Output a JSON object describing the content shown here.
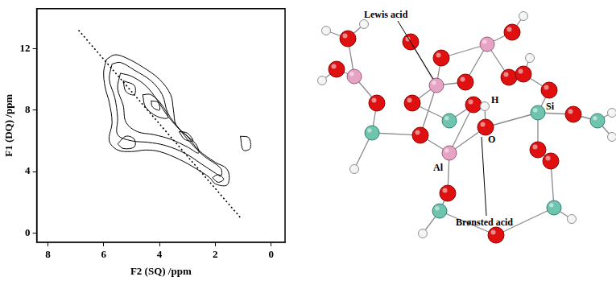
{
  "chart_data": {
    "type": "contour",
    "x_label": "F2 (SQ) /ppm",
    "y_label": "F1 (DQ) /ppm",
    "xlim": [
      8.4,
      -0.5
    ],
    "xticks": [
      8,
      6,
      4,
      2,
      0
    ],
    "ylim": [
      -0.6,
      14.6
    ],
    "yticks": [
      0,
      4,
      8,
      12
    ],
    "grid": false,
    "series": [
      {
        "color": "#000000",
        "line_style": "solid",
        "x": [
          5.9,
          6.0,
          5.95,
          5.8,
          5.7,
          5.8,
          5.5,
          5.0,
          4.5,
          4.0,
          3.3,
          2.7,
          2.2,
          2.0,
          1.6,
          1.5,
          1.6,
          2.0,
          2.6,
          3.0,
          3.4,
          3.5,
          3.6,
          4.0,
          4.6,
          5.2,
          5.6,
          5.9
        ],
        "values": [
          11.3,
          10.5,
          9.5,
          8.5,
          7.2,
          6.0,
          5.4,
          5.3,
          5.4,
          5.3,
          4.8,
          4.2,
          3.6,
          3.2,
          3.1,
          3.6,
          4.2,
          4.6,
          5.4,
          6.3,
          7.0,
          8.0,
          9.0,
          10.0,
          10.8,
          11.4,
          11.6,
          11.3
        ]
      },
      {
        "color": "#000000",
        "line_style": "solid",
        "x": [
          5.7,
          5.8,
          5.6,
          5.5,
          5.5,
          5.0,
          4.4,
          3.8,
          3.1,
          2.5,
          2.0,
          1.8,
          1.8,
          2.4,
          2.9,
          3.3,
          3.7,
          3.9,
          4.3,
          4.9,
          5.4,
          5.7
        ],
        "values": [
          11.0,
          10.0,
          8.8,
          7.5,
          6.4,
          6.0,
          5.9,
          5.7,
          5.2,
          4.5,
          3.9,
          3.7,
          4.2,
          5.0,
          5.9,
          6.8,
          7.8,
          9.0,
          9.9,
          10.6,
          11.1,
          11.0
        ]
      },
      {
        "color": "#000000",
        "line_style": "solid",
        "x": [
          5.4,
          5.5,
          5.3,
          5.2,
          4.8,
          4.2,
          3.6,
          3.0,
          2.6,
          2.7,
          3.2,
          3.7,
          4.1,
          4.5,
          5.0,
          5.4
        ],
        "values": [
          10.4,
          9.4,
          8.3,
          7.2,
          6.6,
          6.4,
          6.1,
          5.6,
          5.2,
          5.8,
          6.6,
          7.6,
          8.7,
          9.6,
          10.2,
          10.4
        ]
      },
      {
        "color": "#000000",
        "line_style": "solid",
        "x": [
          5.5,
          5.3,
          4.9,
          4.9,
          5.2,
          5.5
        ],
        "values": [
          5.8,
          5.5,
          5.6,
          6.1,
          6.3,
          5.8
        ]
      },
      {
        "color": "#000000",
        "line_style": "solid",
        "x": [
          4.6,
          4.5,
          4.1,
          3.7,
          3.9,
          4.3,
          4.6
        ],
        "values": [
          9.0,
          8.2,
          7.6,
          7.5,
          8.3,
          9.0,
          9.0
        ]
      },
      {
        "color": "#000000",
        "line_style": "solid",
        "x": [
          4.3,
          4.25,
          4.0,
          4.05,
          4.3
        ],
        "values": [
          8.6,
          8.2,
          8.0,
          8.5,
          8.6
        ]
      },
      {
        "color": "#000000",
        "line_style": "solid",
        "x": [
          5.3,
          5.2,
          4.9,
          4.9,
          5.3
        ],
        "values": [
          9.9,
          9.2,
          9.0,
          9.6,
          9.9
        ]
      },
      {
        "color": "#000000",
        "line_style": "solid",
        "x": [
          3.3,
          3.1,
          2.8,
          3.0,
          3.3
        ],
        "values": [
          6.6,
          6.1,
          6.0,
          6.5,
          6.6
        ]
      },
      {
        "color": "#000000",
        "line_style": "solid",
        "x": [
          1.1,
          1.0,
          0.75,
          0.8,
          1.1
        ],
        "values": [
          6.3,
          5.4,
          5.5,
          6.2,
          6.3
        ]
      },
      {
        "color": "#000000",
        "line_style": "solid",
        "x": [
          2.1,
          1.9,
          1.7,
          1.9,
          2.1
        ],
        "values": [
          3.6,
          3.3,
          3.5,
          3.8,
          3.6
        ]
      },
      {
        "color": "#000000",
        "line_style": "dotted",
        "x": [
          6.9,
          1.1
        ],
        "values": [
          13.2,
          1.0
        ]
      }
    ]
  },
  "diagram": {
    "annotations": {
      "lewis": "Lewis acid",
      "bronsted": "Brønsted acid"
    },
    "atom_labels": {
      "hydrogen": "H",
      "oxygen": "O",
      "aluminium": "Al",
      "silicon": "Si"
    }
  }
}
